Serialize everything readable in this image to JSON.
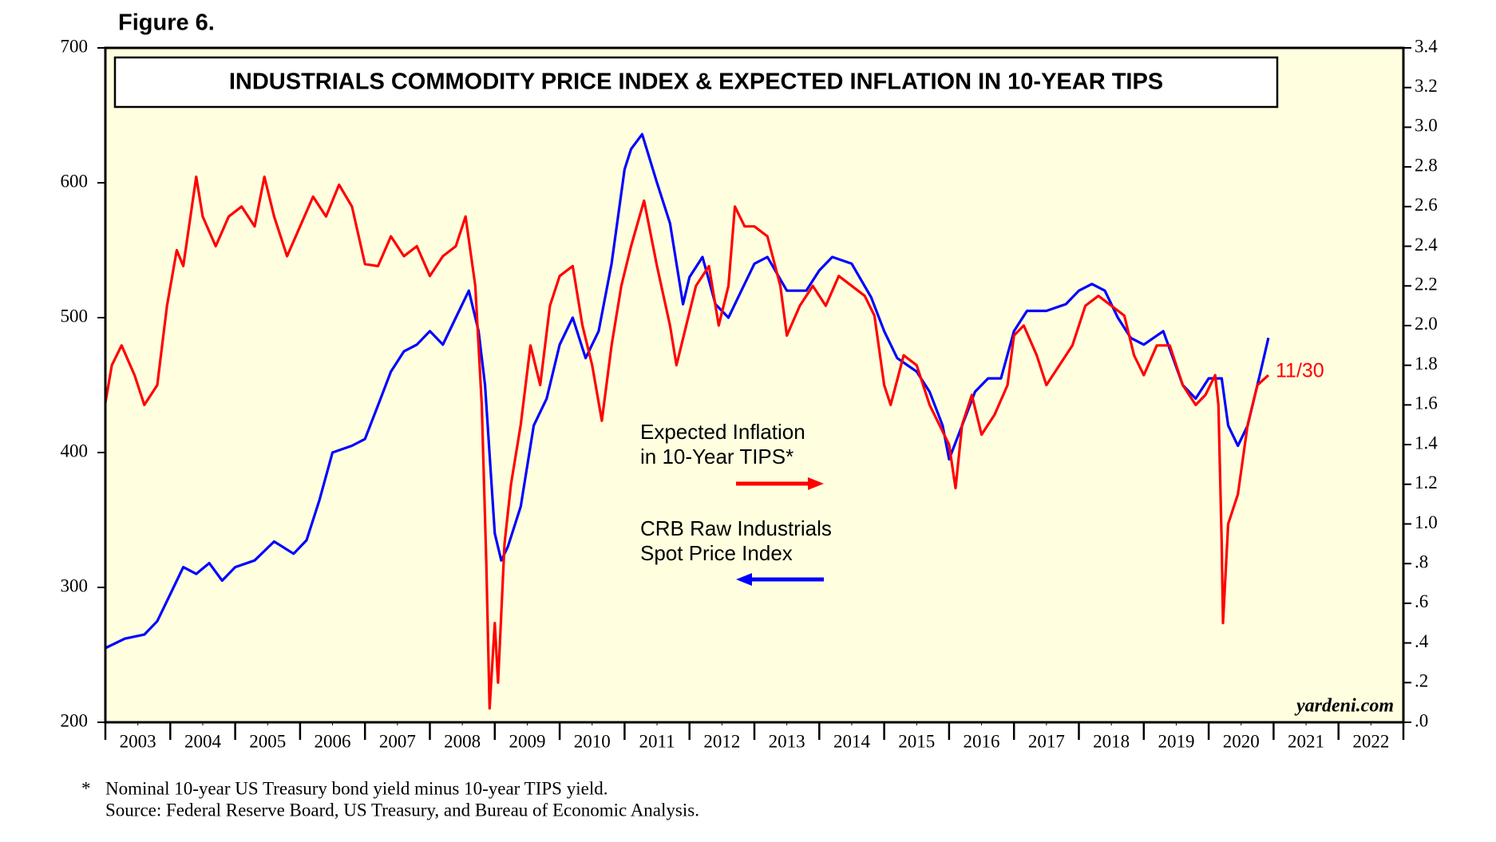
{
  "chart_data": {
    "type": "line",
    "figure_label": "Figure 6.",
    "title": "INDUSTRIALS COMMODITY PRICE INDEX & EXPECTED INFLATION IN 10-YEAR TIPS",
    "source_brand": "yardeni.com",
    "annotation": "11/30",
    "footnote_marker": "*",
    "footnotes": [
      "Nominal 10-year US Treasury bond yield minus 10-year TIPS yield.",
      "Source: Federal Reserve Board, US Treasury, and Bureau of Economic Analysis."
    ],
    "xlim": [
      2003,
      2023
    ],
    "xticks": [
      {
        "value": 2003.5,
        "label": "2003"
      },
      {
        "value": 2004.5,
        "label": "2004"
      },
      {
        "value": 2005.5,
        "label": "2005"
      },
      {
        "value": 2006.5,
        "label": "2006"
      },
      {
        "value": 2007.5,
        "label": "2007"
      },
      {
        "value": 2008.5,
        "label": "2008"
      },
      {
        "value": 2009.5,
        "label": "2009"
      },
      {
        "value": 2010.5,
        "label": "2010"
      },
      {
        "value": 2011.5,
        "label": "2011"
      },
      {
        "value": 2012.5,
        "label": "2012"
      },
      {
        "value": 2013.5,
        "label": "2013"
      },
      {
        "value": 2014.5,
        "label": "2014"
      },
      {
        "value": 2015.5,
        "label": "2015"
      },
      {
        "value": 2016.5,
        "label": "2016"
      },
      {
        "value": 2017.5,
        "label": "2017"
      },
      {
        "value": 2018.5,
        "label": "2018"
      },
      {
        "value": 2019.5,
        "label": "2019"
      },
      {
        "value": 2020.5,
        "label": "2020"
      },
      {
        "value": 2021.5,
        "label": "2021"
      },
      {
        "value": 2022.5,
        "label": "2022"
      }
    ],
    "ylim": [
      200,
      700
    ],
    "yticks": [
      200,
      300,
      400,
      500,
      600,
      700
    ],
    "y2lim": [
      0,
      3.4
    ],
    "y2ticks": [
      {
        "value": 0,
        "label": ".0"
      },
      {
        "value": 0.2,
        "label": ".2"
      },
      {
        "value": 0.4,
        "label": ".4"
      },
      {
        "value": 0.6,
        "label": ".6"
      },
      {
        "value": 0.8,
        "label": ".8"
      },
      {
        "value": 1,
        "label": "1.0"
      },
      1.2,
      1.4,
      1.6,
      1.8,
      {
        "value": 2,
        "label": "2.0"
      },
      2.2,
      2.4,
      2.6,
      2.8,
      {
        "value": 3,
        "label": "3.0"
      },
      3.2,
      3.4
    ],
    "background": "#ffffe0",
    "series": [
      {
        "name": [
          "CRB Raw Industrials",
          "Spot Price Index"
        ],
        "color": "#0000ff",
        "axis": "y",
        "x": [
          2003.0,
          2003.3,
          2003.6,
          2003.8,
          2004.0,
          2004.2,
          2004.4,
          2004.6,
          2004.8,
          2005.0,
          2005.3,
          2005.6,
          2005.9,
          2006.1,
          2006.3,
          2006.5,
          2006.8,
          2007.0,
          2007.2,
          2007.4,
          2007.6,
          2007.8,
          2008.0,
          2008.2,
          2008.4,
          2008.6,
          2008.75,
          2008.85,
          2009.0,
          2009.1,
          2009.2,
          2009.4,
          2009.6,
          2009.8,
          2010.0,
          2010.2,
          2010.4,
          2010.6,
          2010.8,
          2011.0,
          2011.1,
          2011.27,
          2011.5,
          2011.7,
          2011.9,
          2012.0,
          2012.2,
          2012.4,
          2012.6,
          2012.8,
          2013.0,
          2013.2,
          2013.5,
          2013.8,
          2014.0,
          2014.2,
          2014.5,
          2014.8,
          2015.0,
          2015.2,
          2015.5,
          2015.7,
          2015.9,
          2016.0,
          2016.2,
          2016.4,
          2016.6,
          2016.8,
          2017.0,
          2017.2,
          2017.5,
          2017.8,
          2018.0,
          2018.2,
          2018.4,
          2018.6,
          2018.8,
          2019.0,
          2019.3,
          2019.6,
          2019.8,
          2020.0,
          2020.2,
          2020.3,
          2020.45,
          2020.6,
          2020.8,
          2020.92
        ],
        "values": [
          255,
          262,
          265,
          275,
          295,
          315,
          310,
          318,
          305,
          315,
          320,
          334,
          325,
          335,
          365,
          400,
          405,
          410,
          435,
          460,
          475,
          480,
          490,
          480,
          500,
          520,
          490,
          450,
          340,
          320,
          330,
          360,
          420,
          440,
          480,
          500,
          470,
          490,
          540,
          610,
          625,
          636,
          600,
          570,
          510,
          530,
          545,
          510,
          500,
          520,
          540,
          545,
          520,
          520,
          535,
          545,
          540,
          515,
          490,
          470,
          460,
          445,
          420,
          395,
          420,
          445,
          455,
          455,
          490,
          505,
          505,
          510,
          520,
          525,
          520,
          500,
          485,
          480,
          490,
          450,
          440,
          455,
          455,
          420,
          405,
          420,
          460,
          485
        ]
      },
      {
        "name": [
          "Expected Inflation",
          "in 10-Year TIPS*"
        ],
        "color": "#ff0000",
        "axis": "y2",
        "x": [
          2003.0,
          2003.1,
          2003.25,
          2003.45,
          2003.6,
          2003.8,
          2003.95,
          2004.1,
          2004.2,
          2004.4,
          2004.5,
          2004.7,
          2004.9,
          2005.1,
          2005.3,
          2005.45,
          2005.6,
          2005.8,
          2006.0,
          2006.2,
          2006.4,
          2006.6,
          2006.8,
          2007.0,
          2007.2,
          2007.4,
          2007.6,
          2007.8,
          2008.0,
          2008.2,
          2008.4,
          2008.55,
          2008.7,
          2008.8,
          2008.87,
          2008.92,
          2009.0,
          2009.05,
          2009.15,
          2009.25,
          2009.4,
          2009.55,
          2009.7,
          2009.85,
          2010.0,
          2010.2,
          2010.35,
          2010.5,
          2010.65,
          2010.8,
          2010.95,
          2011.1,
          2011.3,
          2011.5,
          2011.7,
          2011.8,
          2011.95,
          2012.1,
          2012.3,
          2012.45,
          2012.6,
          2012.7,
          2012.85,
          2013.0,
          2013.2,
          2013.4,
          2013.5,
          2013.7,
          2013.9,
          2014.1,
          2014.3,
          2014.5,
          2014.7,
          2014.85,
          2015.0,
          2015.1,
          2015.3,
          2015.5,
          2015.7,
          2015.85,
          2016.0,
          2016.1,
          2016.2,
          2016.35,
          2016.5,
          2016.7,
          2016.9,
          2017.0,
          2017.15,
          2017.35,
          2017.5,
          2017.7,
          2017.9,
          2018.1,
          2018.3,
          2018.5,
          2018.7,
          2018.85,
          2019.0,
          2019.2,
          2019.4,
          2019.6,
          2019.8,
          2019.95,
          2020.1,
          2020.15,
          2020.2,
          2020.22,
          2020.3,
          2020.45,
          2020.6,
          2020.75,
          2020.92
        ],
        "values": [
          1.61,
          1.8,
          1.9,
          1.75,
          1.6,
          1.7,
          2.1,
          2.38,
          2.3,
          2.75,
          2.55,
          2.4,
          2.55,
          2.6,
          2.5,
          2.75,
          2.55,
          2.35,
          2.5,
          2.65,
          2.55,
          2.71,
          2.6,
          2.31,
          2.3,
          2.45,
          2.35,
          2.4,
          2.25,
          2.35,
          2.4,
          2.55,
          2.2,
          1.6,
          0.8,
          0.07,
          0.5,
          0.2,
          0.9,
          1.2,
          1.5,
          1.9,
          1.7,
          2.1,
          2.25,
          2.3,
          2.0,
          1.8,
          1.52,
          1.9,
          2.2,
          2.4,
          2.63,
          2.3,
          2.0,
          1.8,
          2.0,
          2.2,
          2.3,
          2.0,
          2.2,
          2.6,
          2.5,
          2.5,
          2.45,
          2.2,
          1.95,
          2.1,
          2.2,
          2.1,
          2.25,
          2.2,
          2.15,
          2.05,
          1.7,
          1.6,
          1.85,
          1.8,
          1.6,
          1.5,
          1.4,
          1.18,
          1.5,
          1.65,
          1.45,
          1.55,
          1.7,
          1.95,
          2.0,
          1.85,
          1.7,
          1.8,
          1.9,
          2.1,
          2.15,
          2.1,
          2.05,
          1.85,
          1.75,
          1.9,
          1.9,
          1.7,
          1.6,
          1.65,
          1.75,
          1.6,
          0.9,
          0.5,
          1.0,
          1.15,
          1.5,
          1.7,
          1.75
        ]
      }
    ]
  }
}
